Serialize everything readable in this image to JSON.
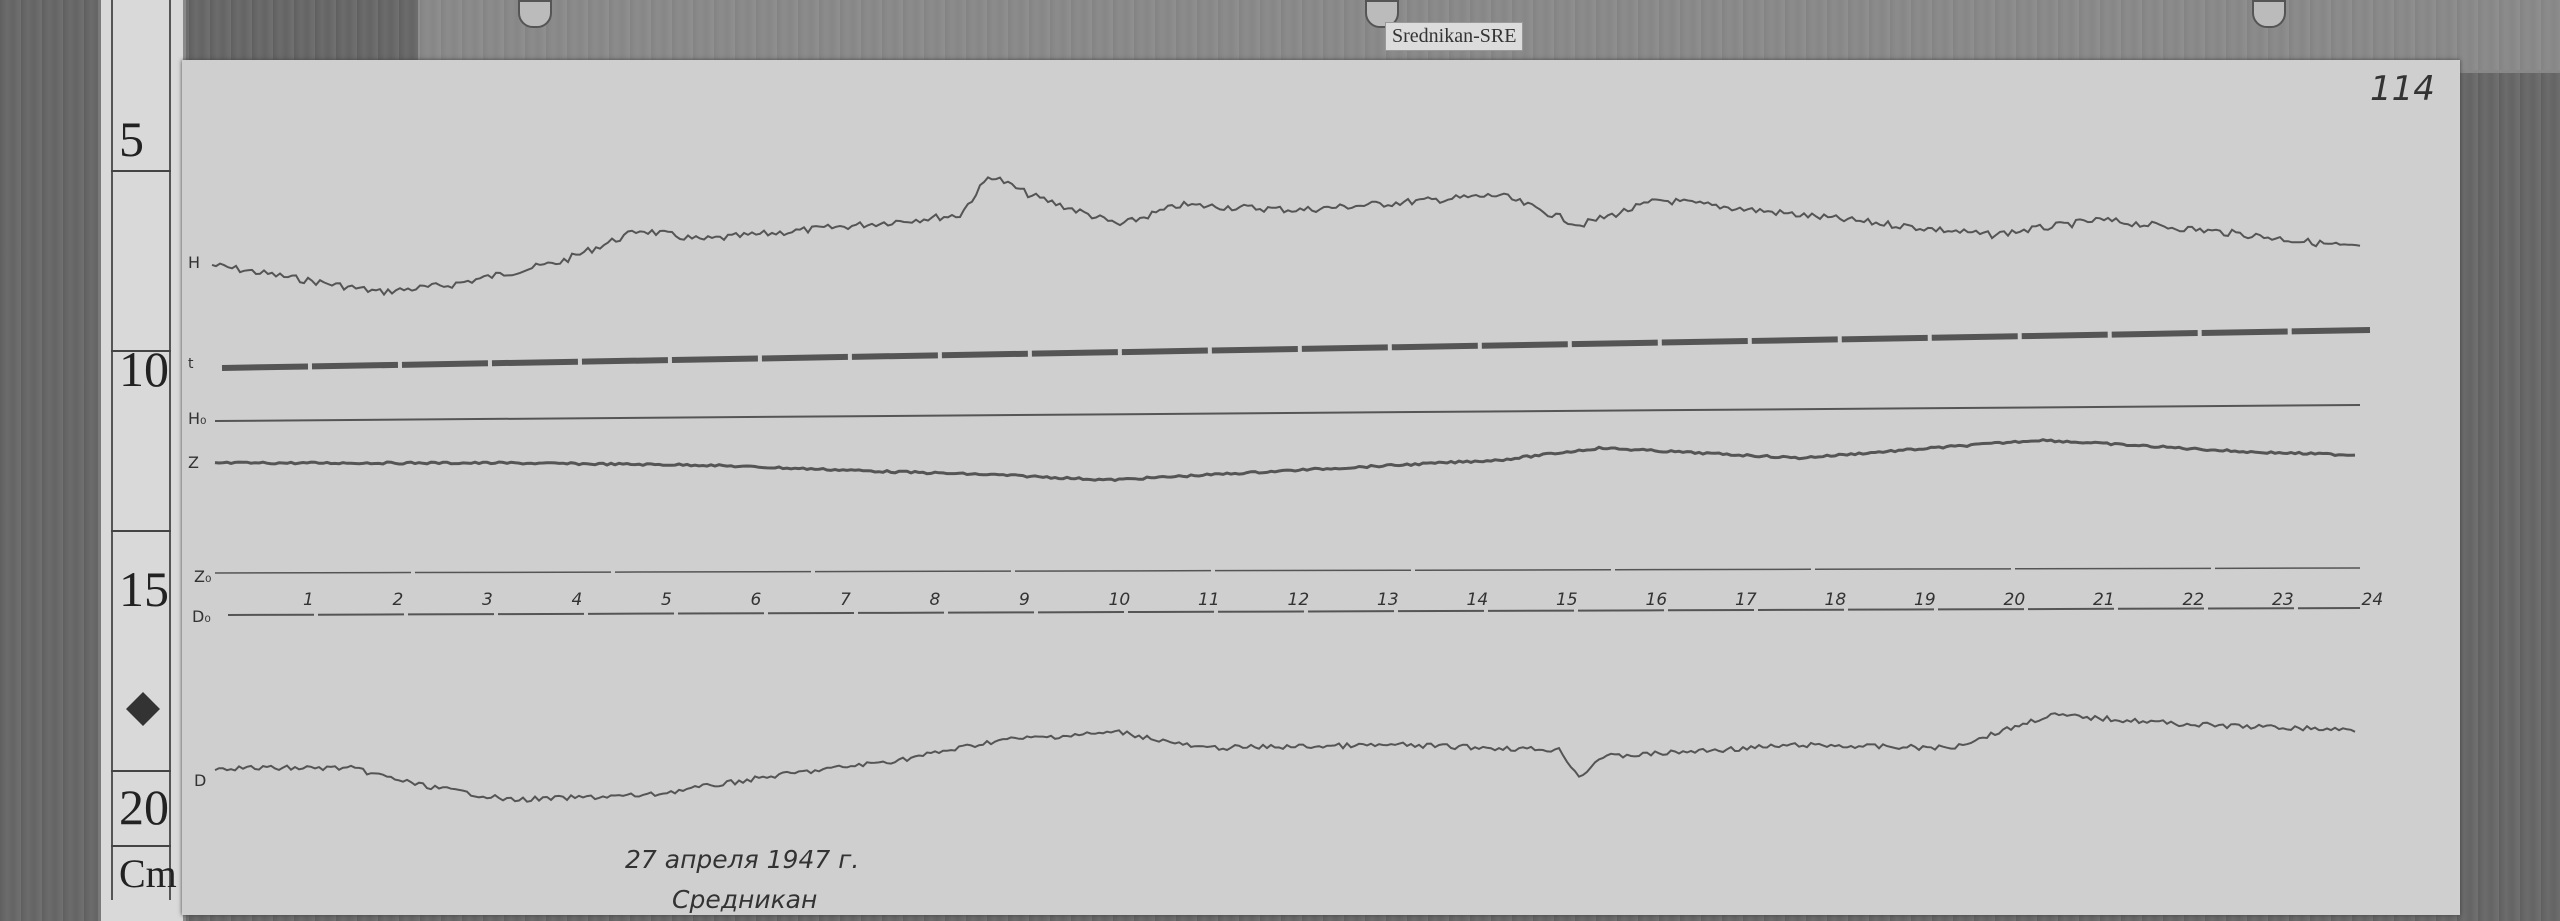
{
  "station_label": "Srednikan-SRE",
  "sheet_number": "114",
  "ruler": {
    "marks": [
      "5",
      "10",
      "15",
      "20"
    ],
    "unit": "Cm"
  },
  "trace_labels": {
    "H": "H",
    "t": "t",
    "H0": "H₀",
    "Z": "Z",
    "Z0": "Z₀",
    "D0": "D₀",
    "D": "D"
  },
  "hour_marks": [
    "1",
    "2",
    "3",
    "4",
    "5",
    "6",
    "7",
    "8",
    "9",
    "10",
    "11",
    "12",
    "13",
    "14",
    "15",
    "16",
    "17",
    "18",
    "19",
    "20",
    "21",
    "22",
    "23",
    "24"
  ],
  "date_note": "27 апреля 1947 г.",
  "place_note": "Средникан"
}
